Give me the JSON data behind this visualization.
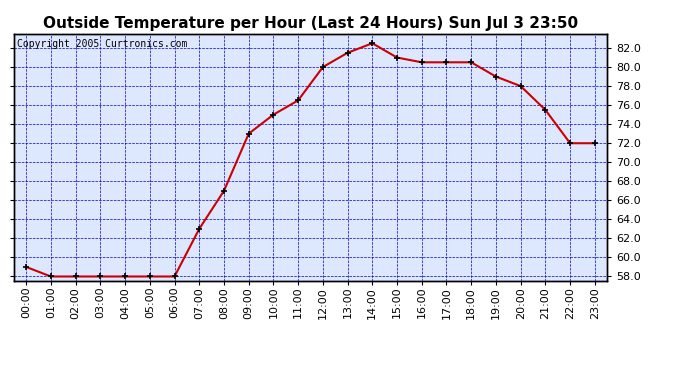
{
  "title": "Outside Temperature per Hour (Last 24 Hours) Sun Jul 3 23:50",
  "copyright": "Copyright 2005 Curtronics.com",
  "hours": [
    "00:00",
    "01:00",
    "02:00",
    "03:00",
    "04:00",
    "05:00",
    "06:00",
    "07:00",
    "08:00",
    "09:00",
    "10:00",
    "11:00",
    "12:00",
    "13:00",
    "14:00",
    "15:00",
    "16:00",
    "17:00",
    "18:00",
    "19:00",
    "20:00",
    "21:00",
    "22:00",
    "23:00"
  ],
  "temps": [
    59.0,
    58.0,
    58.0,
    58.0,
    58.0,
    58.0,
    58.0,
    63.0,
    67.0,
    73.0,
    75.0,
    76.5,
    80.0,
    81.5,
    82.5,
    81.0,
    80.5,
    80.5,
    80.5,
    79.0,
    78.0,
    75.5,
    72.0,
    72.0
  ],
  "ylim": [
    57.5,
    83.5
  ],
  "ytick_min": 58.0,
  "ytick_max": 82.0,
  "ytick_step": 2.0,
  "line_color": "#cc0000",
  "marker_color": "#000000",
  "grid_color": "#0000bb",
  "bg_color": "#ffffff",
  "plot_bg_color": "#dde8ff",
  "title_fontsize": 11,
  "copyright_fontsize": 7,
  "tick_fontsize": 8
}
